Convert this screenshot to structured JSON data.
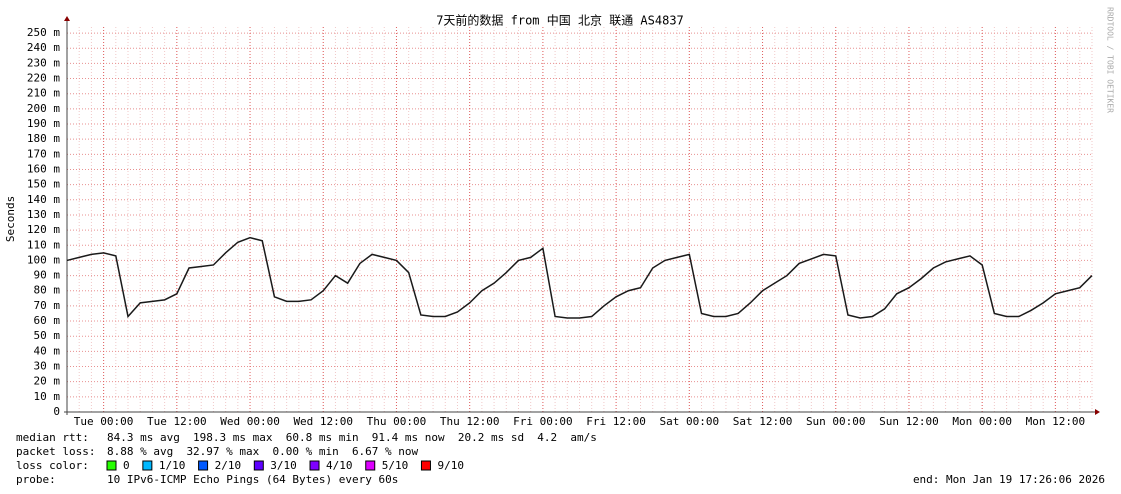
{
  "chart_data": {
    "type": "line",
    "title": "7天前的数据 from 中国 北京 联通 AS4837",
    "y_label": "Seconds",
    "side_text": "RRDTOOL / TOBI OETIKER",
    "categories": [
      null,
      null,
      null,
      "Tue 00:00",
      null,
      null,
      null,
      null,
      null,
      "Tue 12:00",
      null,
      null,
      null,
      null,
      null,
      "Wed 00:00",
      null,
      null,
      null,
      null,
      null,
      "Wed 12:00",
      null,
      null,
      null,
      null,
      null,
      "Thu 00:00",
      null,
      null,
      null,
      null,
      null,
      "Thu 12:00",
      null,
      null,
      null,
      null,
      null,
      "Fri 00:00",
      null,
      null,
      null,
      null,
      null,
      "Fri 12:00",
      null,
      null,
      null,
      null,
      null,
      "Sat 00:00",
      null,
      null,
      null,
      null,
      null,
      "Sat 12:00",
      null,
      null,
      null,
      null,
      null,
      "Sun 00:00",
      null,
      null,
      null,
      null,
      null,
      "Sun 12:00",
      null,
      null,
      null,
      null,
      null,
      "Mon 00:00",
      null,
      null,
      null,
      null,
      null,
      "Mon 12:00",
      null,
      null,
      null
    ],
    "series": [
      {
        "color": "#1a1a1a",
        "values": [
          0.1,
          0.102,
          0.104,
          0.105,
          0.103,
          0.063,
          0.072,
          0.073,
          0.074,
          0.078,
          0.095,
          0.096,
          0.097,
          0.105,
          0.112,
          0.115,
          0.113,
          0.076,
          0.073,
          0.073,
          0.074,
          0.08,
          0.09,
          0.085,
          0.098,
          0.104,
          0.102,
          0.1,
          0.092,
          0.064,
          0.063,
          0.063,
          0.066,
          0.072,
          0.08,
          0.085,
          0.092,
          0.1,
          0.102,
          0.108,
          0.063,
          0.062,
          0.062,
          0.063,
          0.07,
          0.076,
          0.08,
          0.082,
          0.095,
          0.1,
          0.102,
          0.104,
          0.065,
          0.063,
          0.063,
          0.065,
          0.072,
          0.08,
          0.085,
          0.09,
          0.098,
          0.101,
          0.104,
          0.103,
          0.064,
          0.062,
          0.063,
          0.068,
          0.078,
          0.082,
          0.088,
          0.095,
          0.099,
          0.101,
          0.103,
          0.097,
          0.065,
          0.063,
          0.063,
          0.067,
          0.072,
          0.078,
          0.08,
          0.082,
          0.09
        ]
      }
    ],
    "ylim": [
      0,
      0.254
    ],
    "yticks": [
      {
        "value": 0,
        "label": "0"
      },
      {
        "value": 0.01,
        "label": "10 m"
      },
      {
        "value": 0.02,
        "label": "20 m"
      },
      {
        "value": 0.03,
        "label": "30 m"
      },
      {
        "value": 0.04,
        "label": "40 m"
      },
      {
        "value": 0.05,
        "label": "50 m"
      },
      {
        "value": 0.06,
        "label": "60 m"
      },
      {
        "value": 0.07,
        "label": "70 m"
      },
      {
        "value": 0.08,
        "label": "80 m"
      },
      {
        "value": 0.09,
        "label": "90 m"
      },
      {
        "value": 0.1,
        "label": "100 m"
      },
      {
        "value": 0.11,
        "label": "110 m"
      },
      {
        "value": 0.12,
        "label": "120 m"
      },
      {
        "value": 0.13,
        "label": "130 m"
      },
      {
        "value": 0.14,
        "label": "140 m"
      },
      {
        "value": 0.15,
        "label": "150 m"
      },
      {
        "value": 0.16,
        "label": "160 m"
      },
      {
        "value": 0.17,
        "label": "170 m"
      },
      {
        "value": 0.18,
        "label": "180 m"
      },
      {
        "value": 0.19,
        "label": "190 m"
      },
      {
        "value": 0.2,
        "label": "200 m"
      },
      {
        "value": 0.21,
        "label": "210 m"
      },
      {
        "value": 0.22,
        "label": "220 m"
      },
      {
        "value": 0.23,
        "label": "230 m"
      },
      {
        "value": 0.24,
        "label": "240 m"
      },
      {
        "value": 0.25,
        "label": "250 m"
      }
    ],
    "grid": true
  },
  "legend": {
    "rows": [
      {
        "label": "median rtt:",
        "items": [
          "84.3 ms avg",
          "198.3 ms max",
          "60.8 ms min",
          "91.4 ms now",
          "20.2 ms sd",
          "4.2",
          "am/s"
        ]
      },
      {
        "label": "packet loss:",
        "items": [
          "8.88 % avg",
          "32.97 % max",
          "0.00 % min",
          "6.67 % now"
        ]
      }
    ],
    "loss": {
      "label": "loss color:",
      "items": [
        {
          "label": "0",
          "color": "#26ff00"
        },
        {
          "label": "1/10",
          "color": "#00b8ff"
        },
        {
          "label": "2/10",
          "color": "#0059ff"
        },
        {
          "label": "3/10",
          "color": "#5e00ff"
        },
        {
          "label": "4/10",
          "color": "#7e00ff"
        },
        {
          "label": "5/10",
          "color": "#dd00ff"
        },
        {
          "label": "9/10",
          "color": "#ff0000"
        }
      ]
    },
    "probe": {
      "label": "probe:",
      "text": "10 IPv6-ICMP Echo Pings (64 Bytes) every 60s",
      "end": "end: Mon Jan 19 17:26:06 2026"
    }
  }
}
